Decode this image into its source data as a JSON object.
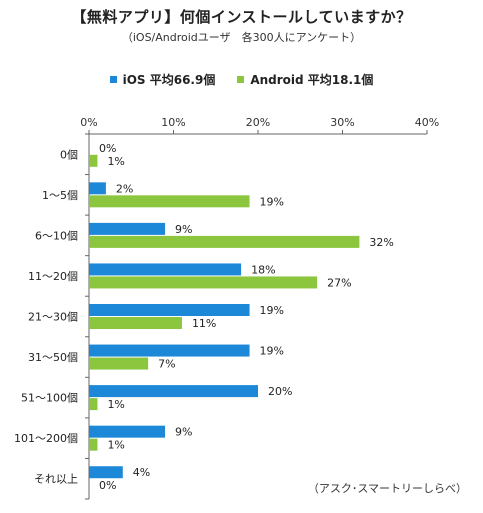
{
  "chart_data": {
    "type": "bar",
    "orientation": "horizontal",
    "title": "【無料アプリ】何個インストールしていますか？",
    "subtitle": "（iOS/Androidユーザ　各300人にアンケート）",
    "categories": [
      "0個",
      "1〜5個",
      "6〜10個",
      "11〜20個",
      "21〜30個",
      "31〜50個",
      "51〜100個",
      "101〜200個",
      "それ以上"
    ],
    "series": [
      {
        "name": "iOS 平均66.9個",
        "color": "#1e88d8",
        "values": [
          0,
          2,
          9,
          18,
          19,
          19,
          20,
          9,
          4
        ]
      },
      {
        "name": "Android 平均18.1個",
        "color": "#8cc63f",
        "values": [
          1,
          19,
          32,
          27,
          11,
          7,
          1,
          1,
          0
        ]
      }
    ],
    "xlim": [
      0,
      40
    ],
    "xticks": [
      "0%",
      "10%",
      "20%",
      "30%",
      "40%"
    ],
    "value_suffix": "%",
    "legend_position": "top-center",
    "grid": false
  },
  "source_note": "（アスク･スマートリーしらべ）"
}
